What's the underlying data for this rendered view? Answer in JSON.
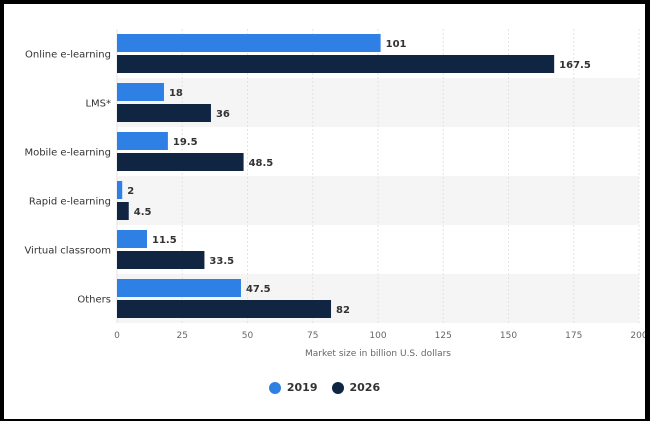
{
  "chart_data": {
    "type": "bar",
    "orientation": "horizontal",
    "categories": [
      "Online e-learning",
      "LMS*",
      "Mobile e-learning",
      "Rapid e-learning",
      "Virtual classroom",
      "Others"
    ],
    "series": [
      {
        "name": "2019",
        "values": [
          101,
          18,
          19.5,
          2,
          11.5,
          47.5
        ],
        "color": "#2f80e4"
      },
      {
        "name": "2026",
        "values": [
          167.5,
          36,
          48.5,
          4.5,
          33.5,
          82
        ],
        "color": "#0f2542"
      }
    ],
    "value_labels": [
      [
        "101",
        "18",
        "19.5",
        "2",
        "11.5",
        "47.5"
      ],
      [
        "167.5",
        "36",
        "48.5",
        "4.5",
        "33.5",
        "82"
      ]
    ],
    "xlabel": "Market size in billion U.S. dollars",
    "ylabel": "",
    "xlim": [
      0,
      200
    ],
    "xticks": [
      0,
      25,
      50,
      75,
      100,
      125,
      150,
      175,
      200
    ],
    "grid": true,
    "legend_position": "bottom",
    "band_colors": [
      "#ffffff",
      "#f5f5f5"
    ]
  }
}
